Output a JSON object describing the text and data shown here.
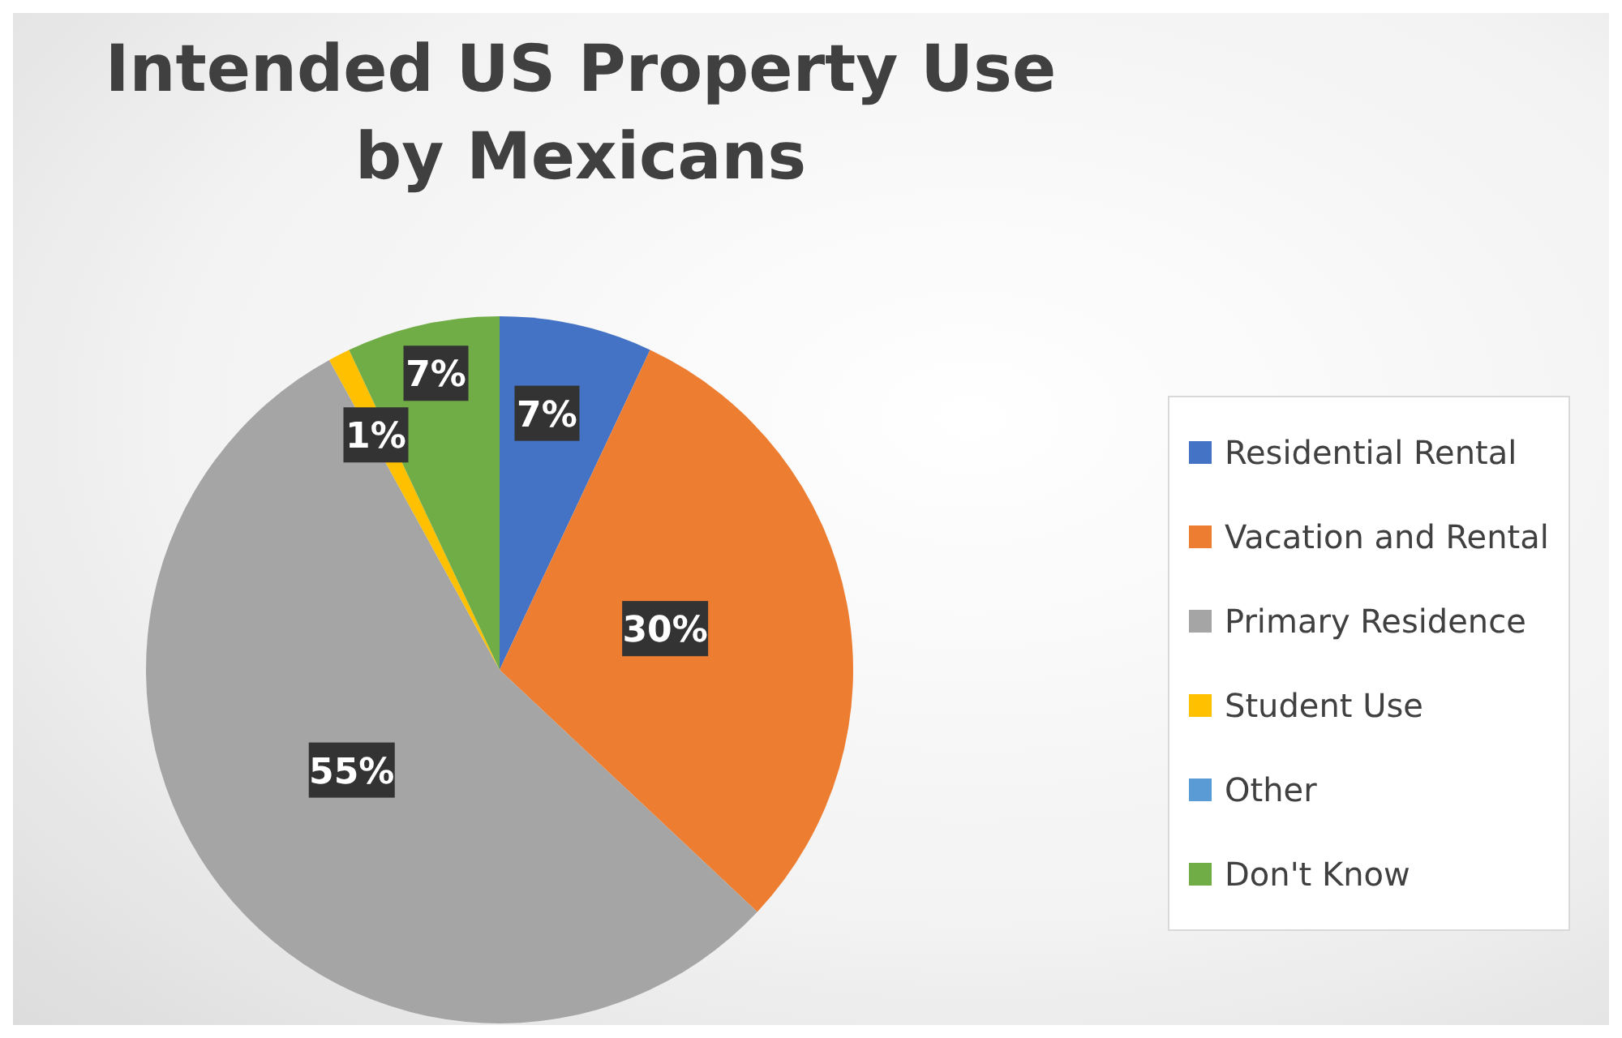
{
  "chart_data": {
    "type": "pie",
    "title": "Intended US Property Use by Mexicans",
    "categories": [
      "Residential Rental",
      "Vacation and Rental",
      "Primary Residence",
      "Student Use",
      "Other",
      "Don't Know"
    ],
    "values": [
      7,
      30,
      55,
      1,
      0,
      7
    ],
    "colors": [
      "#4472c4",
      "#ed7d31",
      "#a5a5a5",
      "#ffc000",
      "#5b9bd5",
      "#70ad47"
    ],
    "value_labels": [
      "7%",
      "30%",
      "55%",
      "1%",
      null,
      "7%"
    ],
    "legend": "right"
  }
}
